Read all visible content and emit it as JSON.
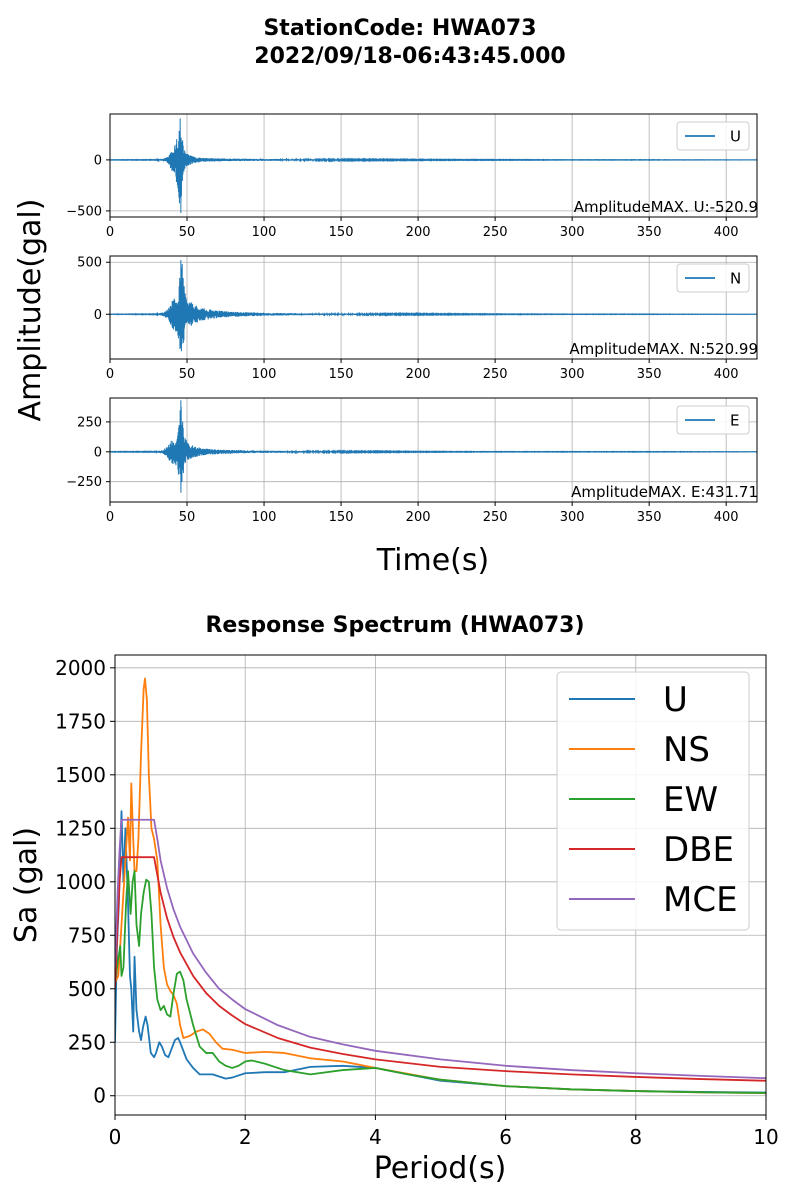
{
  "header": {
    "title_line1": "StationCode: HWA073",
    "title_line2": "2022/09/18-06:43:45.000"
  },
  "waveform": {
    "ylabel": "Amplitude(gal)",
    "xlabel": "Time(s)",
    "xlim": [
      0,
      420
    ],
    "xticks": [
      "0",
      "50",
      "100",
      "150",
      "200",
      "250",
      "300",
      "350",
      "400"
    ],
    "series_color": "#1f77b4"
  },
  "chart_data": [
    {
      "type": "line",
      "component": "U",
      "legend": "U",
      "annotation": "AmplitudeMAX. U:-520.9",
      "peak": -520.9,
      "x_range": [
        0,
        420
      ],
      "ylim": [
        -560,
        450
      ],
      "yticks": [
        -500,
        0
      ],
      "ytick_labels": [
        "−500",
        "0"
      ],
      "grid": true,
      "legend_position": "top-right",
      "envelope": {
        "t": [
          0,
          30,
          35,
          38,
          40,
          42,
          44,
          45,
          46,
          47,
          48,
          50,
          55,
          60,
          70,
          80,
          100,
          120,
          150,
          200,
          250,
          300,
          350,
          420
        ],
        "pos": [
          2,
          3,
          15,
          40,
          110,
          150,
          260,
          440,
          400,
          220,
          120,
          60,
          30,
          20,
          15,
          12,
          10,
          8,
          6,
          4,
          3,
          2,
          2,
          1
        ],
        "neg": [
          -2,
          -3,
          -15,
          -40,
          -110,
          -150,
          -280,
          -520.9,
          -450,
          -250,
          -130,
          -60,
          -30,
          -20,
          -15,
          -12,
          -10,
          -8,
          -6,
          -4,
          -3,
          -2,
          -2,
          -1
        ]
      }
    },
    {
      "type": "line",
      "component": "N",
      "legend": "N",
      "annotation": "AmplitudeMAX. N:520.99",
      "peak": 520.99,
      "x_range": [
        0,
        420
      ],
      "ylim": [
        -430,
        560
      ],
      "yticks": [
        0,
        500
      ],
      "ytick_labels": [
        "0",
        "500"
      ],
      "grid": true,
      "legend_position": "top-right",
      "envelope": {
        "t": [
          0,
          30,
          35,
          38,
          40,
          42,
          44,
          46,
          47,
          48,
          50,
          55,
          60,
          70,
          80,
          100,
          120,
          150,
          200,
          250,
          300,
          350,
          420
        ],
        "pos": [
          2,
          3,
          20,
          60,
          120,
          180,
          220,
          460,
          520.99,
          280,
          150,
          90,
          60,
          35,
          25,
          15,
          10,
          7,
          5,
          3,
          2,
          2,
          1
        ],
        "neg": [
          -2,
          -3,
          -20,
          -60,
          -120,
          -180,
          -200,
          -400,
          -420,
          -250,
          -140,
          -90,
          -60,
          -35,
          -25,
          -15,
          -10,
          -7,
          -5,
          -3,
          -2,
          -2,
          -1
        ]
      }
    },
    {
      "type": "line",
      "component": "E",
      "legend": "E",
      "annotation": "AmplitudeMAX. E:431.71",
      "peak": 431.71,
      "x_range": [
        0,
        420
      ],
      "ylim": [
        -420,
        450
      ],
      "yticks": [
        -250,
        0,
        250
      ],
      "ytick_labels": [
        "−250",
        "0",
        "250"
      ],
      "grid": true,
      "legend_position": "top-right",
      "envelope": {
        "t": [
          0,
          30,
          35,
          38,
          40,
          42,
          44,
          45,
          46,
          47,
          48,
          50,
          55,
          60,
          70,
          80,
          100,
          120,
          150,
          200,
          250,
          300,
          350,
          420
        ],
        "pos": [
          2,
          3,
          20,
          60,
          110,
          100,
          150,
          250,
          431.71,
          300,
          150,
          80,
          45,
          30,
          20,
          15,
          10,
          7,
          5,
          3,
          2,
          2,
          2,
          1
        ],
        "neg": [
          -2,
          -3,
          -20,
          -60,
          -110,
          -100,
          -150,
          -250,
          -380,
          -260,
          -140,
          -80,
          -45,
          -30,
          -20,
          -15,
          -10,
          -7,
          -5,
          -3,
          -2,
          -2,
          -2,
          -1
        ]
      }
    },
    {
      "type": "line",
      "title": "Response Spectrum (HWA073)",
      "xlabel": "Period(s)",
      "ylabel": "Sa (gal)",
      "xlim": [
        0,
        10
      ],
      "ylim": [
        -90,
        2060
      ],
      "xticks": [
        0,
        2,
        4,
        6,
        8,
        10
      ],
      "yticks": [
        0,
        250,
        500,
        750,
        1000,
        1250,
        1500,
        1750,
        2000
      ],
      "grid": true,
      "legend_position": "top-right",
      "series": [
        {
          "name": "U",
          "color": "#1f77b4",
          "points": [
            [
              0,
              250
            ],
            [
              0.03,
              700
            ],
            [
              0.06,
              900
            ],
            [
              0.08,
              1150
            ],
            [
              0.1,
              1330
            ],
            [
              0.13,
              1000
            ],
            [
              0.16,
              1250
            ],
            [
              0.2,
              900
            ],
            [
              0.23,
              560
            ],
            [
              0.25,
              500
            ],
            [
              0.28,
              300
            ],
            [
              0.3,
              650
            ],
            [
              0.33,
              400
            ],
            [
              0.37,
              300
            ],
            [
              0.4,
              260
            ],
            [
              0.43,
              320
            ],
            [
              0.47,
              370
            ],
            [
              0.5,
              330
            ],
            [
              0.55,
              200
            ],
            [
              0.6,
              180
            ],
            [
              0.63,
              200
            ],
            [
              0.68,
              250
            ],
            [
              0.72,
              230
            ],
            [
              0.77,
              190
            ],
            [
              0.82,
              180
            ],
            [
              0.87,
              220
            ],
            [
              0.92,
              260
            ],
            [
              0.97,
              270
            ],
            [
              1.0,
              250
            ],
            [
              1.1,
              170
            ],
            [
              1.2,
              130
            ],
            [
              1.3,
              100
            ],
            [
              1.4,
              100
            ],
            [
              1.5,
              100
            ],
            [
              1.6,
              90
            ],
            [
              1.7,
              80
            ],
            [
              1.8,
              85
            ],
            [
              2.0,
              105
            ],
            [
              2.3,
              110
            ],
            [
              2.6,
              110
            ],
            [
              3.0,
              135
            ],
            [
              3.5,
              140
            ],
            [
              4.0,
              130
            ],
            [
              4.5,
              100
            ],
            [
              5.0,
              70
            ],
            [
              6.0,
              45
            ],
            [
              7.0,
              30
            ],
            [
              8.0,
              22
            ],
            [
              9.0,
              18
            ],
            [
              10.0,
              15
            ]
          ]
        },
        {
          "name": "NS",
          "color": "#ff7f0e",
          "points": [
            [
              0,
              530
            ],
            [
              0.05,
              560
            ],
            [
              0.08,
              700
            ],
            [
              0.12,
              900
            ],
            [
              0.16,
              1100
            ],
            [
              0.2,
              1300
            ],
            [
              0.23,
              1100
            ],
            [
              0.25,
              1460
            ],
            [
              0.28,
              1200
            ],
            [
              0.3,
              1050
            ],
            [
              0.33,
              1050
            ],
            [
              0.36,
              1200
            ],
            [
              0.4,
              1600
            ],
            [
              0.44,
              1900
            ],
            [
              0.46,
              1950
            ],
            [
              0.49,
              1850
            ],
            [
              0.52,
              1500
            ],
            [
              0.56,
              1250
            ],
            [
              0.6,
              1200
            ],
            [
              0.65,
              1100
            ],
            [
              0.7,
              800
            ],
            [
              0.75,
              600
            ],
            [
              0.8,
              520
            ],
            [
              0.85,
              490
            ],
            [
              0.9,
              470
            ],
            [
              0.95,
              430
            ],
            [
              1.0,
              330
            ],
            [
              1.05,
              270
            ],
            [
              1.15,
              280
            ],
            [
              1.25,
              300
            ],
            [
              1.35,
              310
            ],
            [
              1.45,
              290
            ],
            [
              1.55,
              250
            ],
            [
              1.65,
              220
            ],
            [
              1.8,
              215
            ],
            [
              2.0,
              200
            ],
            [
              2.3,
              205
            ],
            [
              2.6,
              200
            ],
            [
              3.0,
              175
            ],
            [
              3.5,
              160
            ],
            [
              4.0,
              130
            ],
            [
              5.0,
              75
            ],
            [
              6.0,
              45
            ],
            [
              7.0,
              30
            ],
            [
              8.0,
              22
            ],
            [
              9.0,
              16
            ],
            [
              10.0,
              12
            ]
          ]
        },
        {
          "name": "EW",
          "color": "#2ca02c",
          "points": [
            [
              0,
              530
            ],
            [
              0.05,
              640
            ],
            [
              0.08,
              700
            ],
            [
              0.1,
              560
            ],
            [
              0.13,
              600
            ],
            [
              0.17,
              900
            ],
            [
              0.2,
              1050
            ],
            [
              0.24,
              850
            ],
            [
              0.27,
              1000
            ],
            [
              0.3,
              1050
            ],
            [
              0.33,
              800
            ],
            [
              0.37,
              700
            ],
            [
              0.4,
              850
            ],
            [
              0.44,
              950
            ],
            [
              0.48,
              1010
            ],
            [
              0.52,
              1000
            ],
            [
              0.56,
              850
            ],
            [
              0.6,
              600
            ],
            [
              0.65,
              450
            ],
            [
              0.7,
              400
            ],
            [
              0.75,
              420
            ],
            [
              0.8,
              380
            ],
            [
              0.85,
              370
            ],
            [
              0.9,
              480
            ],
            [
              0.95,
              570
            ],
            [
              1.0,
              580
            ],
            [
              1.05,
              540
            ],
            [
              1.1,
              450
            ],
            [
              1.2,
              330
            ],
            [
              1.3,
              230
            ],
            [
              1.4,
              200
            ],
            [
              1.5,
              200
            ],
            [
              1.6,
              160
            ],
            [
              1.7,
              140
            ],
            [
              1.8,
              130
            ],
            [
              1.9,
              140
            ],
            [
              2.0,
              160
            ],
            [
              2.1,
              165
            ],
            [
              2.3,
              150
            ],
            [
              2.6,
              120
            ],
            [
              3.0,
              100
            ],
            [
              3.5,
              120
            ],
            [
              4.0,
              130
            ],
            [
              4.5,
              100
            ],
            [
              5.0,
              75
            ],
            [
              6.0,
              45
            ],
            [
              7.0,
              30
            ],
            [
              8.0,
              22
            ],
            [
              9.0,
              16
            ],
            [
              10.0,
              13
            ]
          ]
        },
        {
          "name": "DBE",
          "color": "#d62728",
          "points": [
            [
              0,
              500
            ],
            [
              0.04,
              800
            ],
            [
              0.07,
              1000
            ],
            [
              0.1,
              1115
            ],
            [
              0.2,
              1115
            ],
            [
              0.3,
              1115
            ],
            [
              0.4,
              1115
            ],
            [
              0.5,
              1115
            ],
            [
              0.6,
              1115
            ],
            [
              0.7,
              950
            ],
            [
              0.8,
              830
            ],
            [
              0.9,
              740
            ],
            [
              1.0,
              670
            ],
            [
              1.2,
              560
            ],
            [
              1.4,
              480
            ],
            [
              1.6,
              420
            ],
            [
              1.8,
              375
            ],
            [
              2.0,
              335
            ],
            [
              2.5,
              270
            ],
            [
              3.0,
              225
            ],
            [
              3.5,
              195
            ],
            [
              4.0,
              170
            ],
            [
              5.0,
              135
            ],
            [
              6.0,
              115
            ],
            [
              7.0,
              100
            ],
            [
              8.0,
              88
            ],
            [
              9.0,
              78
            ],
            [
              10.0,
              70
            ]
          ]
        },
        {
          "name": "MCE",
          "color": "#9467bd",
          "points": [
            [
              0,
              600
            ],
            [
              0.04,
              950
            ],
            [
              0.07,
              1150
            ],
            [
              0.1,
              1290
            ],
            [
              0.2,
              1290
            ],
            [
              0.3,
              1290
            ],
            [
              0.4,
              1290
            ],
            [
              0.5,
              1290
            ],
            [
              0.6,
              1290
            ],
            [
              0.65,
              1200
            ],
            [
              0.7,
              1100
            ],
            [
              0.8,
              970
            ],
            [
              0.9,
              870
            ],
            [
              1.0,
              790
            ],
            [
              1.2,
              665
            ],
            [
              1.4,
              575
            ],
            [
              1.6,
              500
            ],
            [
              1.8,
              450
            ],
            [
              2.0,
              405
            ],
            [
              2.5,
              330
            ],
            [
              3.0,
              275
            ],
            [
              3.5,
              240
            ],
            [
              4.0,
              210
            ],
            [
              5.0,
              170
            ],
            [
              6.0,
              140
            ],
            [
              7.0,
              120
            ],
            [
              8.0,
              105
            ],
            [
              9.0,
              93
            ],
            [
              10.0,
              82
            ]
          ]
        }
      ]
    }
  ]
}
